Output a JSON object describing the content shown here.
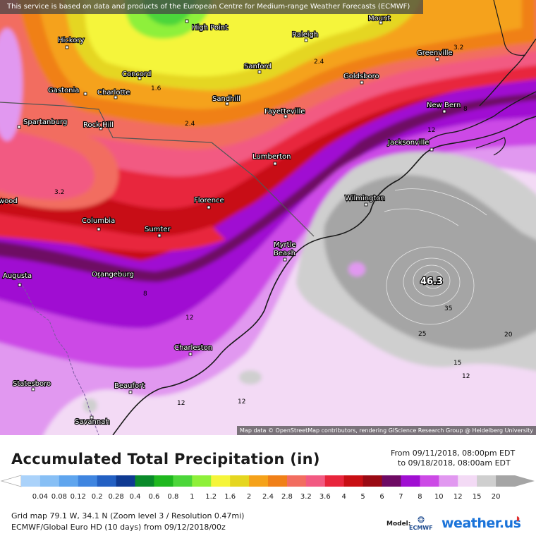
{
  "notice": "This service is based on data and products of the European Centre for Medium-range Weather Forecasts (ECMWF)",
  "attribution": "Map data © OpenStreetMap contributors, rendering GIScience Research Group @ Heidelberg University",
  "title": "Accumulated Total Precipitation (in)",
  "period": {
    "from": "From 09/11/2018, 08:00pm EDT",
    "to": "to 09/18/2018, 08:00am EDT"
  },
  "scale": {
    "ticks": [
      "0.04",
      "0.08",
      "0.12",
      "0.2",
      "0.28",
      "0.4",
      "0.6",
      "0.8",
      "1",
      "1.2",
      "1.6",
      "2",
      "2.4",
      "2.8",
      "3.2",
      "3.6",
      "4",
      "5",
      "6",
      "7",
      "8",
      "10",
      "12",
      "15",
      "20"
    ],
    "colors": [
      "#aad2fa",
      "#87bff5",
      "#5fa5ee",
      "#3f85e0",
      "#2360c3",
      "#0f3a92",
      "#0a8a2a",
      "#1fb81f",
      "#4cd63a",
      "#8ef03a",
      "#f5f53a",
      "#e5d620",
      "#f5a21a",
      "#f08018",
      "#f26d60",
      "#f25a82",
      "#e8253c",
      "#c80f14",
      "#9a0a14",
      "#6e0a64",
      "#a00fd2",
      "#cc4ae6",
      "#e198f0",
      "#f3daf5",
      "#cfcfcf",
      "#a5a5a5"
    ]
  },
  "grid_info": "Grid map 79.1 W, 34.1 N (Zoom level 3 / Resolution 0.47mi)",
  "model_info": "ECMWF/Global Euro HD (10 days) from 09/12/2018/00z",
  "model_label": "Model:",
  "model_logo_text": "ECMWF",
  "brand": "weather.us",
  "map": {
    "cities": [
      {
        "name": "High Point",
        "id": "high-point"
      },
      {
        "name": "Raleigh",
        "id": "raleigh"
      },
      {
        "name": "Mount",
        "id": "mount"
      },
      {
        "name": "Hickory",
        "id": "hickory"
      },
      {
        "name": "Greenville",
        "id": "greenville"
      },
      {
        "name": "Concord",
        "id": "concord"
      },
      {
        "name": "Sanford",
        "id": "sanford"
      },
      {
        "name": "Goldsboro",
        "id": "goldsboro"
      },
      {
        "name": "Gastonia",
        "id": "gastonia"
      },
      {
        "name": "Charlotte",
        "id": "charlotte"
      },
      {
        "name": "Sandhill",
        "id": "sandhill"
      },
      {
        "name": "New Bern",
        "id": "new-bern"
      },
      {
        "name": "Fayetteville",
        "id": "fayetteville"
      },
      {
        "name": "Spartanburg",
        "id": "spartanburg"
      },
      {
        "name": "Rock Hill",
        "id": "rock-hill"
      },
      {
        "name": "Jacksonville",
        "id": "jacksonville"
      },
      {
        "name": "Lumberton",
        "id": "lumberton"
      },
      {
        "name": "Wilmington",
        "id": "wilmington"
      },
      {
        "name": "Florence",
        "id": "florence"
      },
      {
        "name": "wood",
        "id": "wood"
      },
      {
        "name": "Columbia",
        "id": "columbia"
      },
      {
        "name": "Sumter",
        "id": "sumter"
      },
      {
        "name": "Myrtle",
        "id": "myrtle"
      },
      {
        "name": "Beach",
        "id": "beach"
      },
      {
        "name": "Augusta",
        "id": "augusta"
      },
      {
        "name": "Orangeburg",
        "id": "orangeburg"
      },
      {
        "name": "Charleston",
        "id": "charleston"
      },
      {
        "name": "Statesboro",
        "id": "statesboro"
      },
      {
        "name": "Beaufort",
        "id": "beaufort"
      },
      {
        "name": "Savannah",
        "id": "savannah"
      }
    ],
    "contour_labels": [
      "1.6",
      "2.4",
      "2.4",
      "3.2",
      "3.2",
      "8",
      "8",
      "12",
      "12",
      "12",
      "12",
      "12",
      "15",
      "20",
      "25",
      "35"
    ],
    "max_value": "46.3"
  }
}
